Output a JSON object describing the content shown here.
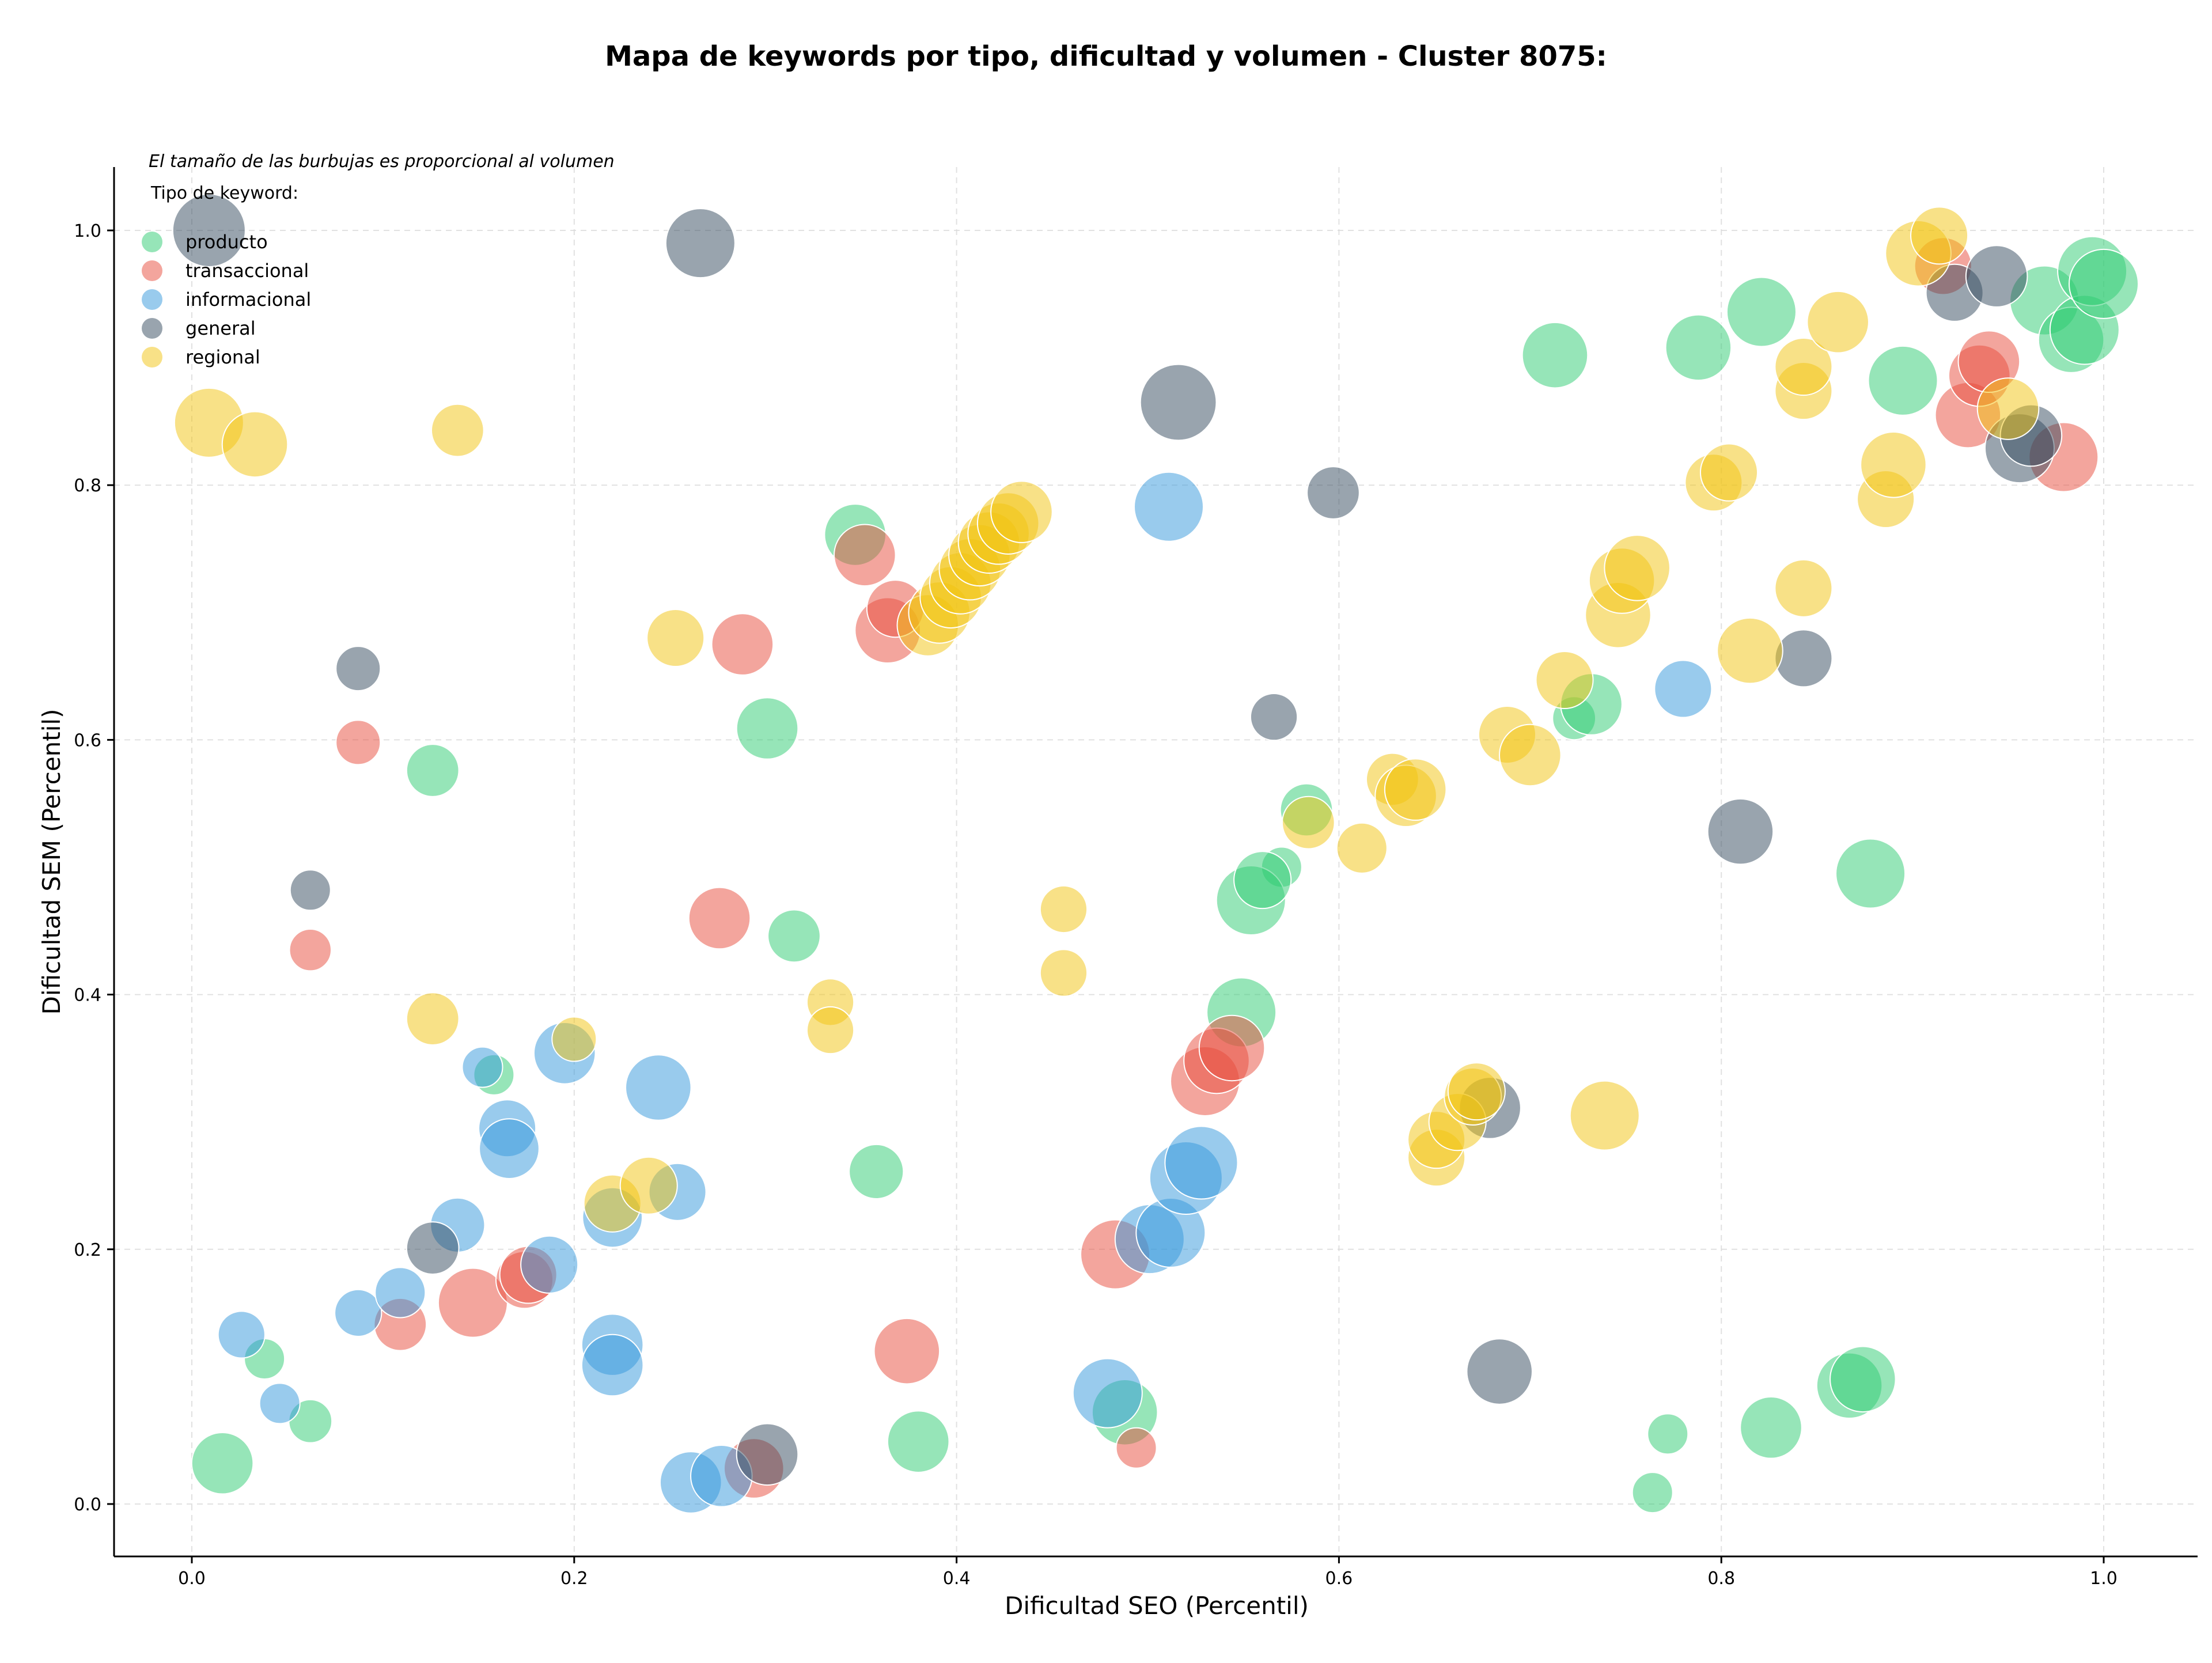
{
  "chart_data": {
    "type": "scatter",
    "title": "Mapa de keywords por tipo, dificultad y volumen - Cluster 8075:",
    "xlabel": "Dificultad SEO (Percentil)",
    "ylabel": "Dificultad SEM (Percentil)",
    "annotation": "El tamaño de las burbujas es proporcional al volumen",
    "legend_title": "Tipo de keyword:",
    "legend_position": "top-left",
    "grid": true,
    "xlim": [
      -0.04,
      1.05
    ],
    "ylim": [
      -0.04,
      1.05
    ],
    "xticks": [
      "0.0",
      "0.2",
      "0.4",
      "0.6",
      "0.8",
      "1.0"
    ],
    "yticks": [
      "0.0",
      "0.2",
      "0.4",
      "0.6",
      "0.8",
      "1.0"
    ],
    "series": [
      {
        "name": "producto",
        "color": "#2ecc71",
        "points": [
          [
            0.016,
            0.032,
            3
          ],
          [
            0.038,
            0.114,
            1
          ],
          [
            0.062,
            0.065,
            1.2
          ],
          [
            0.126,
            0.576,
            2
          ],
          [
            0.158,
            0.337,
            1
          ],
          [
            0.301,
            0.609,
            3
          ],
          [
            0.347,
            0.761,
            3
          ],
          [
            0.358,
            0.261,
            2.2
          ],
          [
            0.38,
            0.049,
            3
          ],
          [
            0.488,
            0.072,
            3.5
          ],
          [
            0.315,
            0.446,
            2
          ],
          [
            0.57,
            0.5,
            1
          ],
          [
            0.583,
            0.545,
            2
          ],
          [
            0.554,
            0.474,
            4
          ],
          [
            0.56,
            0.49,
            2.5
          ],
          [
            0.549,
            0.386,
            4
          ],
          [
            0.723,
            0.617,
            1.2
          ],
          [
            0.713,
            0.902,
            3.5
          ],
          [
            0.732,
            0.628,
            3
          ],
          [
            0.764,
            0.009,
            1
          ],
          [
            0.772,
            0.055,
            1
          ],
          [
            0.788,
            0.908,
            3.5
          ],
          [
            0.821,
            0.936,
            4
          ],
          [
            0.826,
            0.06,
            3
          ],
          [
            0.878,
            0.495,
            4
          ],
          [
            0.867,
            0.093,
            3.5
          ],
          [
            0.874,
            0.098,
            3.5
          ],
          [
            0.895,
            0.882,
            4
          ],
          [
            0.969,
            0.945,
            4
          ],
          [
            0.983,
            0.914,
            3.5
          ],
          [
            0.99,
            0.922,
            4
          ],
          [
            0.994,
            0.968,
            4
          ],
          [
            1.0,
            0.958,
            4
          ]
        ]
      },
      {
        "name": "transaccional",
        "color": "#e74c3c",
        "points": [
          [
            0.087,
            0.598,
            1.3
          ],
          [
            0.062,
            0.435,
            1.1
          ],
          [
            0.109,
            0.141,
            2
          ],
          [
            0.147,
            0.158,
            4
          ],
          [
            0.174,
            0.176,
            2.5
          ],
          [
            0.176,
            0.18,
            2.5
          ],
          [
            0.276,
            0.46,
            3
          ],
          [
            0.288,
            0.675,
            3
          ],
          [
            0.294,
            0.028,
            2.8
          ],
          [
            0.352,
            0.745,
            3
          ],
          [
            0.364,
            0.686,
            3.5
          ],
          [
            0.368,
            0.703,
            2.5
          ],
          [
            0.374,
            0.12,
            3.5
          ],
          [
            0.483,
            0.196,
            4
          ],
          [
            0.494,
            0.044,
            1
          ],
          [
            0.53,
            0.332,
            4
          ],
          [
            0.536,
            0.348,
            3.5
          ],
          [
            0.544,
            0.358,
            3.5
          ],
          [
            0.929,
            0.855,
            3.5
          ],
          [
            0.935,
            0.886,
            3
          ],
          [
            0.94,
            0.897,
            3
          ],
          [
            0.916,
            0.972,
            2.5
          ],
          [
            0.979,
            0.822,
            4
          ]
        ]
      },
      {
        "name": "informacional",
        "color": "#3498db",
        "points": [
          [
            0.026,
            0.133,
            1.5
          ],
          [
            0.046,
            0.079,
            1
          ],
          [
            0.087,
            0.15,
            1.5
          ],
          [
            0.109,
            0.166,
            1.8
          ],
          [
            0.139,
            0.219,
            2.2
          ],
          [
            0.152,
            0.343,
            1
          ],
          [
            0.165,
            0.295,
            2.5
          ],
          [
            0.166,
            0.279,
            2.8
          ],
          [
            0.187,
            0.188,
            2.5
          ],
          [
            0.195,
            0.354,
            3
          ],
          [
            0.22,
            0.125,
            3
          ],
          [
            0.22,
            0.109,
            3
          ],
          [
            0.22,
            0.225,
            2.8
          ],
          [
            0.244,
            0.327,
            3.5
          ],
          [
            0.254,
            0.245,
            2.5
          ],
          [
            0.261,
            0.017,
            3
          ],
          [
            0.277,
            0.022,
            3
          ],
          [
            0.479,
            0.087,
            4
          ],
          [
            0.501,
            0.208,
            4
          ],
          [
            0.512,
            0.213,
            4
          ],
          [
            0.52,
            0.256,
            4.5
          ],
          [
            0.528,
            0.268,
            4.5
          ],
          [
            0.511,
            0.783,
            4
          ],
          [
            0.78,
            0.64,
            2.5
          ]
        ]
      },
      {
        "name": "general",
        "color": "#34495e",
        "points": [
          [
            0.009,
            1.0,
            4.5
          ],
          [
            0.266,
            0.99,
            4
          ],
          [
            0.087,
            0.656,
            1.3
          ],
          [
            0.062,
            0.482,
            1
          ],
          [
            0.126,
            0.201,
            2
          ],
          [
            0.301,
            0.039,
            3
          ],
          [
            0.516,
            0.865,
            5
          ],
          [
            0.566,
            0.618,
            1.5
          ],
          [
            0.597,
            0.794,
            2
          ],
          [
            0.679,
            0.311,
            3
          ],
          [
            0.684,
            0.104,
            3.5
          ],
          [
            0.81,
            0.528,
            3.5
          ],
          [
            0.843,
            0.664,
            2.5
          ],
          [
            0.922,
            0.951,
            2.5
          ],
          [
            0.944,
            0.964,
            3
          ],
          [
            0.956,
            0.829,
            4
          ],
          [
            0.962,
            0.839,
            3
          ]
        ]
      },
      {
        "name": "regional",
        "color": "#f1c40f",
        "points": [
          [
            0.009,
            0.849,
            4
          ],
          [
            0.033,
            0.832,
            3.5
          ],
          [
            0.139,
            0.843,
            2
          ],
          [
            0.126,
            0.381,
            2
          ],
          [
            0.2,
            0.365,
            1.3
          ],
          [
            0.22,
            0.236,
            2.5
          ],
          [
            0.239,
            0.25,
            2.5
          ],
          [
            0.253,
            0.68,
            2.5
          ],
          [
            0.334,
            0.394,
            1.5
          ],
          [
            0.334,
            0.372,
            1.5
          ],
          [
            0.385,
            0.69,
            3
          ],
          [
            0.391,
            0.7,
            3
          ],
          [
            0.397,
            0.712,
            3
          ],
          [
            0.402,
            0.723,
            3
          ],
          [
            0.407,
            0.734,
            3
          ],
          [
            0.412,
            0.745,
            3
          ],
          [
            0.417,
            0.755,
            3
          ],
          [
            0.422,
            0.762,
            3
          ],
          [
            0.427,
            0.77,
            3
          ],
          [
            0.434,
            0.779,
            3
          ],
          [
            0.456,
            0.467,
            1.5
          ],
          [
            0.456,
            0.417,
            1.5
          ],
          [
            0.584,
            0.535,
            2
          ],
          [
            0.612,
            0.515,
            1.8
          ],
          [
            0.628,
            0.569,
            2
          ],
          [
            0.635,
            0.556,
            3
          ],
          [
            0.64,
            0.561,
            3
          ],
          [
            0.651,
            0.272,
            2.5
          ],
          [
            0.651,
            0.286,
            2.5
          ],
          [
            0.662,
            0.3,
            2.5
          ],
          [
            0.67,
            0.32,
            2.5
          ],
          [
            0.672,
            0.324,
            2.5
          ],
          [
            0.688,
            0.604,
            2.5
          ],
          [
            0.7,
            0.588,
            3
          ],
          [
            0.718,
            0.647,
            2.5
          ],
          [
            0.739,
            0.305,
            4
          ],
          [
            0.746,
            0.698,
            3.5
          ],
          [
            0.748,
            0.725,
            3.5
          ],
          [
            0.756,
            0.735,
            3.5
          ],
          [
            0.796,
            0.802,
            2.5
          ],
          [
            0.804,
            0.81,
            2.5
          ],
          [
            0.815,
            0.67,
            3.5
          ],
          [
            0.843,
            0.719,
            2.5
          ],
          [
            0.843,
            0.874,
            2.5
          ],
          [
            0.843,
            0.893,
            2.5
          ],
          [
            0.861,
            0.928,
            3
          ],
          [
            0.886,
            0.789,
            2.5
          ],
          [
            0.89,
            0.816,
            3.5
          ],
          [
            0.903,
            0.982,
            3.5
          ],
          [
            0.914,
            0.996,
            2.5
          ],
          [
            0.95,
            0.86,
            3
          ]
        ]
      }
    ]
  }
}
